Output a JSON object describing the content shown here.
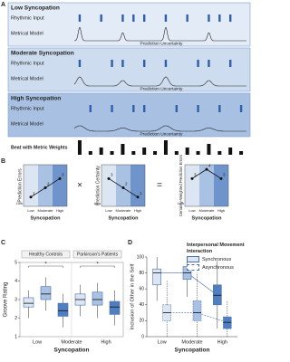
{
  "panel_a": {
    "label": "A",
    "row_labels": [
      "Rhythmic Input",
      "Metrical Model"
    ],
    "uncertainty_label": "Prediction Uncertainty",
    "beat_label": "Beat with Metric Weights",
    "steps": 16,
    "levels": [
      {
        "title": "Low Syncopation",
        "onsets": [
          0,
          2,
          4,
          5,
          6,
          8,
          10,
          12,
          13,
          14
        ]
      },
      {
        "title": "Moderate Syncopation",
        "onsets": [
          0,
          3,
          4,
          6,
          8,
          11,
          12,
          14
        ]
      },
      {
        "title": "High Syncopation",
        "onsets": [
          1,
          3,
          5,
          6,
          9,
          11,
          13,
          15
        ]
      }
    ]
  },
  "panel_b": {
    "label": "B",
    "operators": [
      "×",
      "="
    ],
    "categories": [
      "Low",
      "Moderate",
      "High"
    ],
    "x_label": "Syncopation",
    "charts": [
      {
        "type": "line",
        "y_label": "Prediction Errors",
        "y_low_label": "Low",
        "values": [
          1,
          2,
          3
        ],
        "ylim": [
          0,
          4.5
        ]
      },
      {
        "type": "line",
        "y_label": "Prediction Certainty",
        "y_low_label": "Low",
        "values": [
          3,
          2,
          1
        ],
        "ylim": [
          0,
          4.5
        ]
      },
      {
        "type": "line",
        "y_label": "Certainty-Weighted Prediction Errors",
        "y_low_label": "Low",
        "values": [
          3,
          4,
          3
        ],
        "ylim": [
          0,
          4.5
        ]
      }
    ]
  },
  "panel_c": {
    "label": "C",
    "type": "box",
    "y_label": "Groove Rating",
    "x_label": "Syncopation",
    "categories": [
      "Low",
      "Moderate",
      "High"
    ],
    "ylim": [
      1,
      5
    ],
    "yticks": [
      1,
      2,
      3,
      4,
      5
    ],
    "colors": [
      "#dce6f2",
      "#a9c1e2",
      "#4f7fc0"
    ],
    "significance": "*",
    "groups": [
      {
        "name": "Healthy Controls",
        "boxes": [
          {
            "min": 2.0,
            "q1": 2.6,
            "median": 2.8,
            "q3": 3.1,
            "max": 3.5
          },
          {
            "min": 2.4,
            "q1": 3.0,
            "median": 3.3,
            "q3": 3.7,
            "max": 4.2
          },
          {
            "min": 1.5,
            "q1": 2.1,
            "median": 2.4,
            "q3": 2.8,
            "max": 3.3
          }
        ]
      },
      {
        "name": "Parkinson's Patients",
        "boxes": [
          {
            "min": 2.1,
            "q1": 2.7,
            "median": 3.0,
            "q3": 3.3,
            "max": 3.8
          },
          {
            "min": 2.0,
            "q1": 2.7,
            "median": 3.0,
            "q3": 3.4,
            "max": 3.9
          },
          {
            "min": 1.6,
            "q1": 2.2,
            "median": 2.6,
            "q3": 2.9,
            "max": 3.5
          }
        ]
      }
    ]
  },
  "panel_d": {
    "label": "D",
    "type": "box",
    "y_label": "Inclusion of Other in the Self",
    "x_label": "Syncopation",
    "legend_title": "Interpersonal Movement Interaction",
    "categories": [
      "Low",
      "Moderate",
      "High"
    ],
    "ylim": [
      0,
      100
    ],
    "yticks": [
      0,
      20,
      40,
      60,
      80,
      100
    ],
    "colors": [
      "#dce6f2",
      "#a9c1e2",
      "#4f7fc0"
    ],
    "series": [
      {
        "name": "Synchronous",
        "boxes": [
          {
            "min": 45,
            "q1": 65,
            "median": 80,
            "q3": 85,
            "max": 100
          },
          {
            "min": 50,
            "q1": 72,
            "median": 80,
            "q3": 88,
            "max": 100
          },
          {
            "min": 10,
            "q1": 40,
            "median": 52,
            "q3": 65,
            "max": 95
          }
        ]
      },
      {
        "name": "Asynchronous",
        "boxes": [
          {
            "min": 0,
            "q1": 20,
            "median": 30,
            "q3": 40,
            "max": 70
          },
          {
            "min": 0,
            "q1": 20,
            "median": 30,
            "q3": 45,
            "max": 80
          },
          {
            "min": 0,
            "q1": 10,
            "median": 18,
            "q3": 25,
            "max": 45
          }
        ]
      }
    ]
  }
}
